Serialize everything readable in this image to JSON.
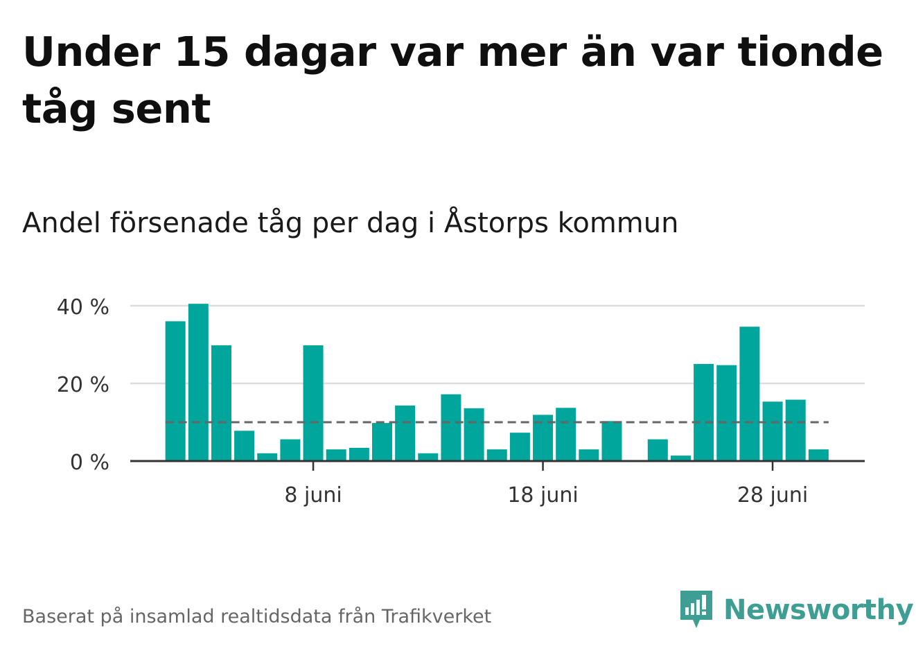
{
  "title": "Under 15 dagar var mer än var tionde tåg sent",
  "subtitle": "Andel försenade tåg per dag i Åstorps kommun",
  "footer": "Baserat på insamlad realtidsdata från Trafikverket",
  "brand": {
    "name": "Newsworthy",
    "icon": "newsworthy-logo-icon",
    "color": "#3f9e94"
  },
  "colors": {
    "bar": "#00a59b",
    "grid": "#dddddd",
    "axis": "#333333",
    "reference_line": "#666666"
  },
  "chart_data": {
    "type": "bar",
    "x_start_day": 1,
    "x_month": "juni",
    "days": [
      1,
      2,
      3,
      4,
      5,
      6,
      7,
      8,
      9,
      10,
      11,
      12,
      13,
      14,
      15,
      16,
      17,
      18,
      19,
      20,
      21,
      22,
      23,
      24,
      25,
      26,
      27,
      28,
      29,
      30
    ],
    "values": [
      null,
      36,
      40.5,
      29.8,
      7.8,
      2,
      5.6,
      29.8,
      3,
      3.4,
      9.8,
      14.3,
      2,
      17.2,
      13.6,
      3,
      7.3,
      11.9,
      13.7,
      3,
      10.3,
      0,
      5.6,
      1.4,
      25,
      24.7,
      34.6,
      15.3,
      15.8,
      3
    ],
    "reference_line": 10,
    "xticks": [
      {
        "day": 8,
        "label": "8 juni"
      },
      {
        "day": 18,
        "label": "18 juni"
      },
      {
        "day": 28,
        "label": "28 juni"
      }
    ],
    "yticks": [
      {
        "value": 0,
        "label": "0 %"
      },
      {
        "value": 20,
        "label": "20 %"
      },
      {
        "value": 40,
        "label": "40 %"
      }
    ],
    "ylim": [
      0,
      40
    ],
    "grid": true,
    "xlabel": "",
    "ylabel": ""
  }
}
